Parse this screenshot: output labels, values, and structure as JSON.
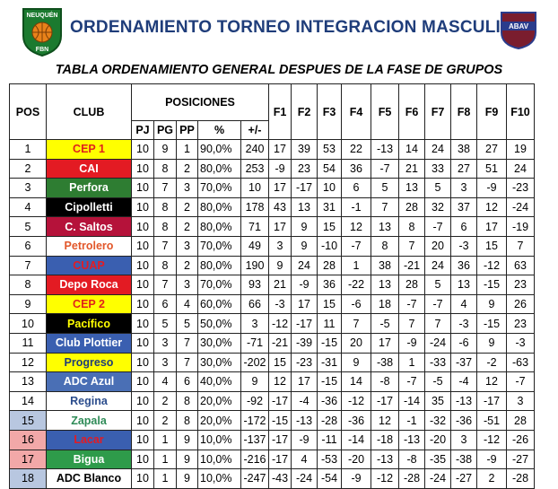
{
  "header": {
    "title": "ORDENAMIENTO TORNEO INTEGRACION MASCULINO",
    "subtitle": "TABLA ORDENAMIENTO GENERAL DESPUES DE LA FASE DE GRUPOS",
    "logo_left": {
      "text_top": "NEUQUÉN",
      "text_bottom": "FBN",
      "colors": [
        "#1b7a2f",
        "#e8821a"
      ]
    },
    "logo_right": {
      "text": "ABAV",
      "colors": [
        "#7a1d2e",
        "#2a3c8c"
      ]
    }
  },
  "table": {
    "headers": {
      "pos": "POS",
      "club": "CLUB",
      "posiciones": "POSICIONES",
      "pj": "PJ",
      "pg": "PG",
      "pp": "PP",
      "pct": "%",
      "diff": "+/-",
      "f": [
        "F1",
        "F2",
        "F3",
        "F4",
        "F5",
        "F6",
        "F7",
        "F8",
        "F9",
        "F10"
      ]
    },
    "rows": [
      {
        "pos": "1",
        "club": "CEP 1",
        "bg": "#ffff00",
        "fg": "#e0221b",
        "posbg": "#ffffff",
        "pj": "10",
        "pg": "9",
        "pp": "1",
        "pct": "90,0%",
        "diff": "240",
        "f": [
          "17",
          "39",
          "53",
          "22",
          "-13",
          "14",
          "24",
          "38",
          "27",
          "19"
        ]
      },
      {
        "pos": "2",
        "club": "CAI",
        "bg": "#e31b23",
        "fg": "#ffffff",
        "posbg": "#ffffff",
        "pj": "10",
        "pg": "8",
        "pp": "2",
        "pct": "80,0%",
        "diff": "253",
        "f": [
          "-9",
          "23",
          "54",
          "36",
          "-7",
          "21",
          "33",
          "27",
          "51",
          "24"
        ]
      },
      {
        "pos": "3",
        "club": "Perfora",
        "bg": "#2e7d32",
        "fg": "#ffffff",
        "posbg": "#ffffff",
        "pj": "10",
        "pg": "7",
        "pp": "3",
        "pct": "70,0%",
        "diff": "10",
        "f": [
          "17",
          "-17",
          "10",
          "6",
          "5",
          "13",
          "5",
          "3",
          "-9",
          "-23"
        ]
      },
      {
        "pos": "4",
        "club": "Cipolletti",
        "bg": "#000000",
        "fg": "#ffffff",
        "posbg": "#ffffff",
        "pj": "10",
        "pg": "8",
        "pp": "2",
        "pct": "80,0%",
        "diff": "178",
        "f": [
          "43",
          "13",
          "31",
          "-1",
          "7",
          "28",
          "32",
          "37",
          "12",
          "-24"
        ]
      },
      {
        "pos": "5",
        "club": "C. Saltos",
        "bg": "#b5123a",
        "fg": "#ffffff",
        "posbg": "#ffffff",
        "pj": "10",
        "pg": "8",
        "pp": "2",
        "pct": "80,0%",
        "diff": "71",
        "f": [
          "17",
          "9",
          "15",
          "12",
          "13",
          "8",
          "-7",
          "6",
          "17",
          "-19"
        ]
      },
      {
        "pos": "6",
        "club": "Petrolero",
        "bg": "#ffffff",
        "fg": "#e2572a",
        "posbg": "#ffffff",
        "pj": "10",
        "pg": "7",
        "pp": "3",
        "pct": "70,0%",
        "diff": "49",
        "f": [
          "3",
          "9",
          "-10",
          "-7",
          "8",
          "7",
          "20",
          "-3",
          "15",
          "7"
        ]
      },
      {
        "pos": "7",
        "club": "CUAP",
        "bg": "#3a5fb0",
        "fg": "#e31b23",
        "posbg": "#ffffff",
        "pj": "10",
        "pg": "8",
        "pp": "2",
        "pct": "80,0%",
        "diff": "190",
        "f": [
          "9",
          "24",
          "28",
          "1",
          "38",
          "-21",
          "24",
          "36",
          "-12",
          "63"
        ]
      },
      {
        "pos": "8",
        "club": "Depo Roca",
        "bg": "#e31b23",
        "fg": "#ffffff",
        "posbg": "#ffffff",
        "pj": "10",
        "pg": "7",
        "pp": "3",
        "pct": "70,0%",
        "diff": "93",
        "f": [
          "21",
          "-9",
          "36",
          "-22",
          "13",
          "28",
          "5",
          "13",
          "-15",
          "23"
        ]
      },
      {
        "pos": "9",
        "club": "CEP 2",
        "bg": "#ffff00",
        "fg": "#e0221b",
        "posbg": "#ffffff",
        "pj": "10",
        "pg": "6",
        "pp": "4",
        "pct": "60,0%",
        "diff": "66",
        "f": [
          "-3",
          "17",
          "15",
          "-6",
          "18",
          "-7",
          "-7",
          "4",
          "9",
          "26"
        ]
      },
      {
        "pos": "10",
        "club": "Pacífico",
        "bg": "#000000",
        "fg": "#ffff00",
        "posbg": "#ffffff",
        "pj": "10",
        "pg": "5",
        "pp": "5",
        "pct": "50,0%",
        "diff": "3",
        "f": [
          "-12",
          "-17",
          "11",
          "7",
          "-5",
          "7",
          "7",
          "-3",
          "-15",
          "23"
        ]
      },
      {
        "pos": "11",
        "club": "Club Plottier",
        "bg": "#3a5fb0",
        "fg": "#ffffff",
        "posbg": "#ffffff",
        "pj": "10",
        "pg": "3",
        "pp": "7",
        "pct": "30,0%",
        "diff": "-71",
        "f": [
          "-21",
          "-39",
          "-15",
          "20",
          "17",
          "-9",
          "-24",
          "-6",
          "9",
          "-3"
        ]
      },
      {
        "pos": "12",
        "club": "Progreso",
        "bg": "#ffff00",
        "fg": "#1f3d7a",
        "posbg": "#ffffff",
        "pj": "10",
        "pg": "3",
        "pp": "7",
        "pct": "30,0%",
        "diff": "-202",
        "f": [
          "15",
          "-23",
          "-31",
          "9",
          "-38",
          "1",
          "-33",
          "-37",
          "-2",
          "-63"
        ]
      },
      {
        "pos": "13",
        "club": "ADC Azul",
        "bg": "#4a6fb5",
        "fg": "#ffffff",
        "posbg": "#ffffff",
        "pj": "10",
        "pg": "4",
        "pp": "6",
        "pct": "40,0%",
        "diff": "9",
        "f": [
          "12",
          "17",
          "-15",
          "14",
          "-8",
          "-7",
          "-5",
          "-4",
          "12",
          "-7"
        ]
      },
      {
        "pos": "14",
        "club": "Regina",
        "bg": "#ffffff",
        "fg": "#2a4c8c",
        "posbg": "#ffffff",
        "pj": "10",
        "pg": "2",
        "pp": "8",
        "pct": "20,0%",
        "diff": "-92",
        "f": [
          "-17",
          "-4",
          "-36",
          "-12",
          "-17",
          "-14",
          "35",
          "-13",
          "-17",
          "3"
        ]
      },
      {
        "pos": "15",
        "club": "Zapala",
        "bg": "#ffffff",
        "fg": "#2e8b57",
        "posbg": "#b8c7e0",
        "pj": "10",
        "pg": "2",
        "pp": "8",
        "pct": "20,0%",
        "diff": "-172",
        "f": [
          "-15",
          "-13",
          "-28",
          "-36",
          "12",
          "-1",
          "-32",
          "-36",
          "-51",
          "28"
        ]
      },
      {
        "pos": "16",
        "club": "Lacar",
        "bg": "#3a5fb0",
        "fg": "#e31b23",
        "posbg": "#f2a8a8",
        "pj": "10",
        "pg": "1",
        "pp": "9",
        "pct": "10,0%",
        "diff": "-137",
        "f": [
          "-17",
          "-9",
          "-11",
          "-14",
          "-18",
          "-13",
          "-20",
          "3",
          "-12",
          "-26"
        ]
      },
      {
        "pos": "17",
        "club": "Bigua",
        "bg": "#2e9b4a",
        "fg": "#ffffff",
        "posbg": "#f2a8a8",
        "pj": "10",
        "pg": "1",
        "pp": "9",
        "pct": "10,0%",
        "diff": "-216",
        "f": [
          "-17",
          "4",
          "-53",
          "-20",
          "-13",
          "-8",
          "-35",
          "-38",
          "-9",
          "-27"
        ]
      },
      {
        "pos": "18",
        "club": "ADC Blanco",
        "bg": "#ffffff",
        "fg": "#000000",
        "posbg": "#b8c7e0",
        "pj": "10",
        "pg": "1",
        "pp": "9",
        "pct": "10,0%",
        "diff": "-247",
        "f": [
          "-43",
          "-24",
          "-54",
          "-9",
          "-12",
          "-28",
          "-24",
          "-27",
          "2",
          "-28"
        ]
      }
    ]
  }
}
